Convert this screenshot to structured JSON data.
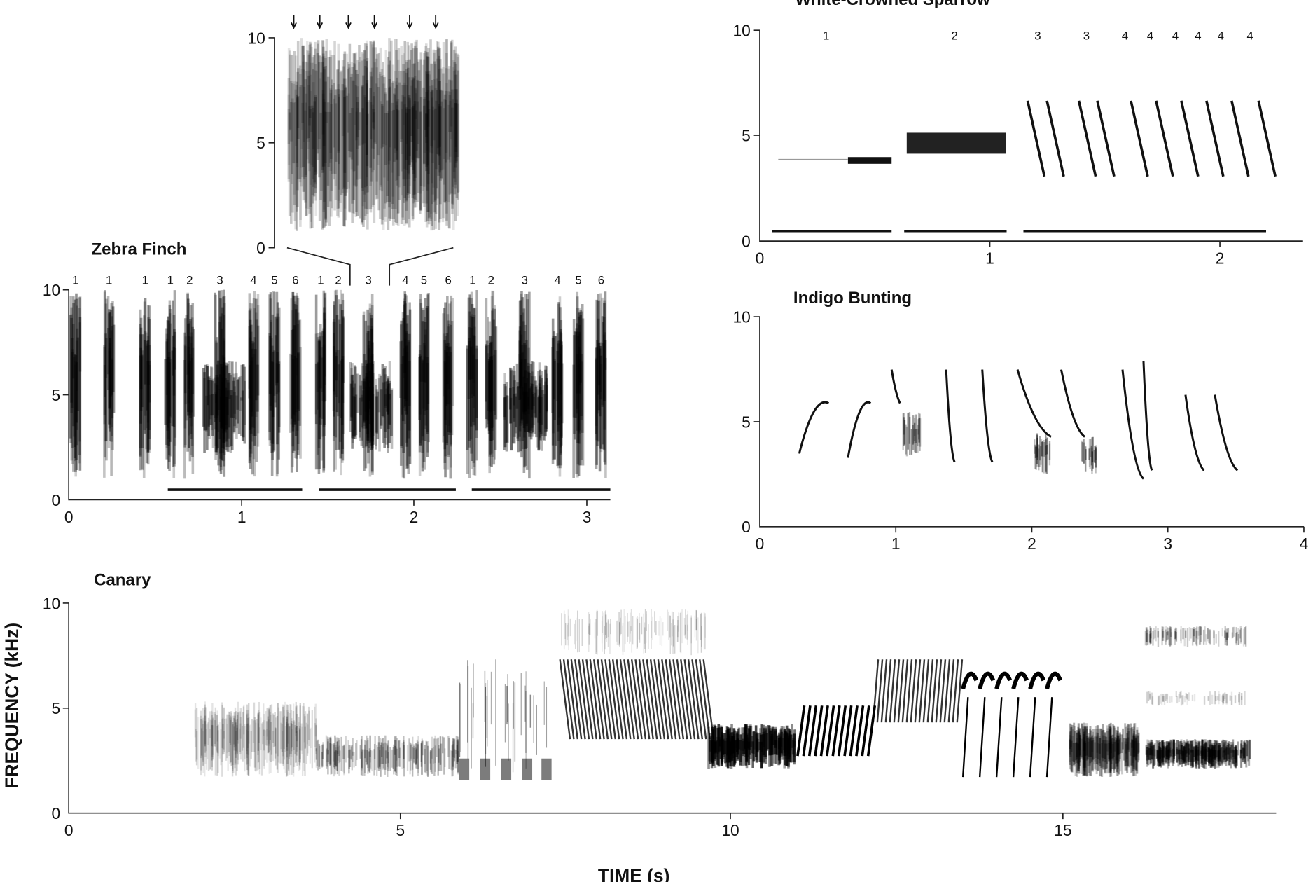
{
  "chart_data": [
    {
      "type": "heatmap",
      "title": "",
      "panel": "zebra-finch-inset",
      "yticks": [
        "0",
        "5",
        "10"
      ],
      "ylim": [
        0,
        10
      ],
      "arrow_count": 6,
      "colors": {
        "ink": "#111111",
        "background": "#ffffff"
      }
    },
    {
      "type": "heatmap",
      "title": "Zebra Finch",
      "xticks": [
        "0",
        "1",
        "2",
        "3"
      ],
      "yticks": [
        "0",
        "5",
        "10"
      ],
      "xlim": [
        0,
        3.15
      ],
      "ylim": [
        0,
        10
      ],
      "syllable_labels": [
        "1",
        "1",
        "1",
        "1",
        "2",
        "3",
        "4",
        "5",
        "6",
        "1",
        "2",
        "3",
        "4",
        "5",
        "6",
        "1",
        "2",
        "3",
        "4",
        "5",
        "6"
      ],
      "motif_bars": 3
    },
    {
      "type": "heatmap",
      "title": "White-Crowned Sparrow",
      "xticks": [
        "0",
        "1",
        "2"
      ],
      "yticks": [
        "0",
        "5",
        "10"
      ],
      "xlim": [
        0,
        2.35
      ],
      "ylim": [
        0,
        10
      ],
      "syllable_labels": [
        "1",
        "2",
        "3",
        "3",
        "4",
        "4",
        "4",
        "4",
        "4",
        "4"
      ],
      "phrase_bars": 3
    },
    {
      "type": "heatmap",
      "title": "Indigo Bunting",
      "xticks": [
        "0",
        "1",
        "2",
        "3",
        "4"
      ],
      "yticks": [
        "0",
        "5",
        "10"
      ],
      "xlim": [
        0,
        4
      ],
      "ylim": [
        0,
        10
      ]
    },
    {
      "type": "heatmap",
      "title": "Canary",
      "xticks": [
        "0",
        "5",
        "10",
        "15"
      ],
      "yticks": [
        "0",
        "5",
        "10"
      ],
      "xlim": [
        0,
        18.3
      ],
      "ylim": [
        0,
        10
      ]
    }
  ],
  "axes": {
    "ylabel": "FREQUENCY (kHz)",
    "xlabel": "TIME (s)"
  }
}
